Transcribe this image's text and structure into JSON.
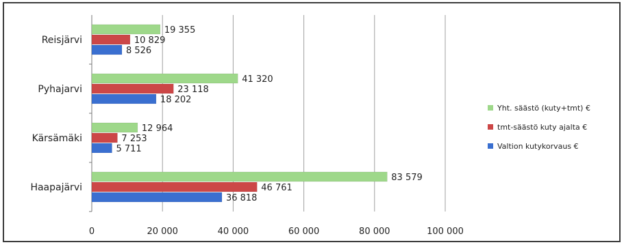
{
  "chart_data": {
    "type": "bar",
    "orientation": "horizontal",
    "categories": [
      "Haapajärvi",
      "Kärsämäki",
      "Pyhäjärvi",
      "Reisjärvi"
    ],
    "series": [
      {
        "name": "Valtion kutykorvaus €",
        "color": "#3a6fd0",
        "values": [
          36818,
          5711,
          18202,
          8526
        ]
      },
      {
        "name": "tmt-säästö kuty ajalta €",
        "color": "#cc4747",
        "values": [
          46761,
          7253,
          23118,
          10829
        ]
      },
      {
        "name": "Yht. säästö (kuty+tmt) €",
        "color": "#9ed88a",
        "values": [
          83579,
          12964,
          41320,
          19355
        ]
      }
    ],
    "value_labels": {
      "Haapajärvi": [
        "36 818",
        "46 761",
        "83 579"
      ],
      "Kärsämäki": [
        "5 711",
        "7 253",
        "12 964"
      ],
      "Pyhäjärvi": [
        "18 202",
        "23 118",
        "41 320"
      ],
      "Reisjärvi": [
        "8 526",
        "10 829",
        "19 355"
      ]
    },
    "category_labels": [
      "Haapajärvi",
      "Kärsämäki",
      "Pyhajarvi",
      "Reisjärvi"
    ],
    "xlim": [
      0,
      100000
    ],
    "x_ticks": [
      0,
      20000,
      40000,
      60000,
      80000,
      100000
    ],
    "x_tick_labels": [
      "0",
      "20 000",
      "40 000",
      "60 000",
      "80 000",
      "100 000"
    ],
    "grid": true,
    "legend_position": "right",
    "legend": [
      "Yht. säästö (kuty+tmt) €",
      "tmt-säästö kuty ajalta €",
      "Valtion kutykorvaus €"
    ]
  }
}
